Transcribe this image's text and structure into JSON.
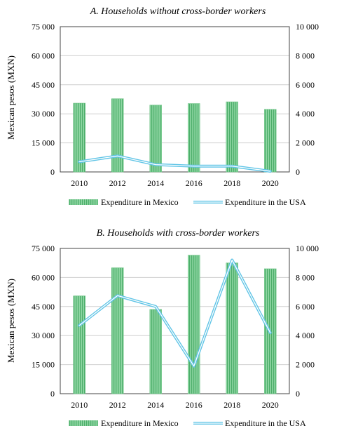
{
  "chart_data": [
    {
      "type": "bar",
      "title": "A.  Households without cross-border workers",
      "ylabel": "Mexican pesos (MXN)",
      "categories": [
        "2010",
        "2012",
        "2014",
        "2016",
        "2018",
        "2020"
      ],
      "y_ticks": [
        "0",
        "15 000",
        "30 000",
        "45 000",
        "60 000",
        "75 000"
      ],
      "y2_ticks": [
        "0",
        "2 000",
        "4 000",
        "6 000",
        "8 000",
        "10 000"
      ],
      "ylim": [
        0,
        75000
      ],
      "y2lim": [
        0,
        10000
      ],
      "grid": true,
      "legend_position": "bottom",
      "series": [
        {
          "name": "Expenditure in Mexico",
          "type": "bar",
          "axis": "left",
          "color": "#7fcf95",
          "values": [
            35500,
            37800,
            34500,
            35300,
            36200,
            32300
          ]
        },
        {
          "name": "Expenditure in the USA",
          "type": "line",
          "axis": "right",
          "color": "#5fc4e6",
          "values": [
            700,
            1100,
            500,
            400,
            400,
            50
          ]
        }
      ]
    },
    {
      "type": "bar",
      "title": "B.  Households with cross-border workers",
      "ylabel": "Mexican pesos (MXN)",
      "categories": [
        "2010",
        "2012",
        "2014",
        "2016",
        "2018",
        "2020"
      ],
      "y_ticks": [
        "0",
        "15 000",
        "30 000",
        "45 000",
        "60 000",
        "75 000"
      ],
      "y2_ticks": [
        "0",
        "2 000",
        "4 000",
        "6 000",
        "8 000",
        "10 000"
      ],
      "ylim": [
        0,
        75000
      ],
      "y2lim": [
        0,
        10000
      ],
      "grid": true,
      "legend_position": "bottom",
      "series": [
        {
          "name": "Expenditure in Mexico",
          "type": "bar",
          "axis": "left",
          "color": "#7fcf95",
          "values": [
            50500,
            65000,
            43500,
            71500,
            67500,
            64500
          ]
        },
        {
          "name": "Expenditure in the USA",
          "type": "line",
          "axis": "right",
          "color": "#5fc4e6",
          "values": [
            4700,
            6750,
            6000,
            1900,
            9200,
            4200
          ]
        }
      ]
    }
  ]
}
